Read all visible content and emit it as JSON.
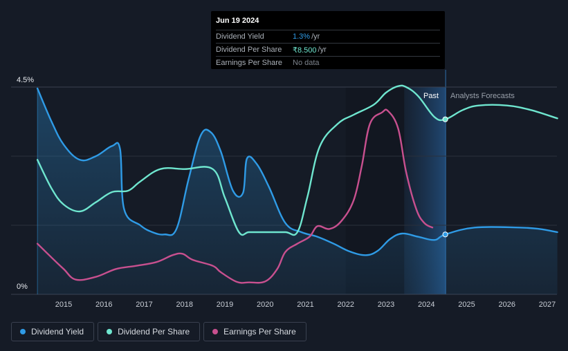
{
  "colors": {
    "background": "#151b26",
    "dividend_yield": "#2f9be6",
    "dividend_per_share": "#6fe6cf",
    "earnings_per_share": "#c8508f",
    "grid": "#2a303c"
  },
  "tooltip": {
    "date": "Jun 19 2024",
    "rows": [
      {
        "label": "Dividend Yield",
        "value": "1.3%",
        "unit": "/yr",
        "color": "#2f9be6"
      },
      {
        "label": "Dividend Per Share",
        "value": "₹8.500",
        "unit": "/yr",
        "color": "#6fe6cf"
      },
      {
        "label": "Earnings Per Share",
        "value": "No data",
        "unit": "",
        "color": "#7d838c"
      }
    ]
  },
  "legend": [
    {
      "label": "Dividend Yield",
      "color": "#2f9be6"
    },
    {
      "label": "Dividend Per Share",
      "color": "#6fe6cf"
    },
    {
      "label": "Earnings Per Share",
      "color": "#c8508f"
    }
  ],
  "chart_data": {
    "type": "line",
    "title": "",
    "xlabel": "",
    "ylabel": "",
    "y_axis_labels": [
      "4.5%",
      "0%"
    ],
    "ylim": [
      0,
      4.5
    ],
    "xlim": [
      2014.0,
      2027.25
    ],
    "x_ticks": [
      2015,
      2016,
      2017,
      2018,
      2019,
      2020,
      2021,
      2022,
      2023,
      2024,
      2025,
      2026,
      2027
    ],
    "past_label": "Past",
    "forecast_label": "Analysts Forecasts",
    "forecast_start": 2024.47,
    "highlight_start": 2023.45,
    "series": [
      {
        "name": "Dividend Yield",
        "unit": "%",
        "x": [
          2014.35,
          2014.7,
          2015.0,
          2015.4,
          2015.8,
          2016.2,
          2016.4,
          2016.5,
          2016.9,
          2017.2,
          2017.5,
          2017.8,
          2018.1,
          2018.4,
          2018.65,
          2018.9,
          2019.2,
          2019.45,
          2019.55,
          2019.8,
          2020.1,
          2020.5,
          2020.9,
          2021.3,
          2021.7,
          2022.1,
          2022.5,
          2022.8,
          2023.1,
          2023.4,
          2023.8,
          2024.2,
          2024.47,
          2025.2,
          2026.3,
          2026.8,
          2027.25
        ],
        "y": [
          4.47,
          3.75,
          3.25,
          2.92,
          3.0,
          3.22,
          3.15,
          1.85,
          1.5,
          1.35,
          1.3,
          1.42,
          2.5,
          3.45,
          3.52,
          3.1,
          2.25,
          2.2,
          2.95,
          2.82,
          2.32,
          1.55,
          1.35,
          1.25,
          1.1,
          0.93,
          0.85,
          0.95,
          1.2,
          1.32,
          1.25,
          1.18,
          1.3,
          1.45,
          1.45,
          1.42,
          1.35
        ]
      },
      {
        "name": "Dividend Per Share",
        "unit": "₹",
        "x": [
          2014.35,
          2014.7,
          2015.0,
          2015.4,
          2015.8,
          2016.2,
          2016.6,
          2016.9,
          2017.4,
          2018.0,
          2018.7,
          2019.0,
          2019.35,
          2019.6,
          2020.0,
          2020.5,
          2020.8,
          2021.05,
          2021.35,
          2021.8,
          2022.2,
          2022.7,
          2023.0,
          2023.3,
          2023.5,
          2023.8,
          2024.2,
          2024.47,
          2024.9,
          2025.3,
          2026.0,
          2026.6,
          2027.25
        ],
        "y": [
          2.92,
          2.3,
          1.95,
          1.8,
          2.0,
          2.22,
          2.25,
          2.45,
          2.72,
          2.72,
          2.72,
          2.1,
          1.35,
          1.35,
          1.35,
          1.35,
          1.35,
          2.12,
          3.2,
          3.7,
          3.9,
          4.12,
          4.38,
          4.52,
          4.5,
          4.3,
          3.85,
          3.8,
          4.0,
          4.1,
          4.1,
          4.0,
          3.82
        ]
      },
      {
        "name": "Earnings Per Share",
        "unit": "₹",
        "x": [
          2014.35,
          2014.7,
          2015.0,
          2015.3,
          2015.8,
          2016.3,
          2016.8,
          2017.3,
          2017.7,
          2017.95,
          2018.2,
          2018.7,
          2018.9,
          2019.3,
          2019.6,
          2020.0,
          2020.3,
          2020.5,
          2020.8,
          2021.1,
          2021.3,
          2021.6,
          2021.9,
          2022.2,
          2022.4,
          2022.6,
          2022.9,
          2023.05,
          2023.3,
          2023.5,
          2023.75,
          2023.95,
          2024.15
        ],
        "y": [
          1.1,
          0.8,
          0.55,
          0.32,
          0.38,
          0.55,
          0.62,
          0.7,
          0.85,
          0.88,
          0.75,
          0.62,
          0.48,
          0.27,
          0.26,
          0.28,
          0.55,
          0.92,
          1.1,
          1.25,
          1.48,
          1.42,
          1.6,
          2.05,
          2.8,
          3.7,
          3.95,
          3.98,
          3.6,
          2.65,
          1.85,
          1.55,
          1.45
        ]
      }
    ],
    "markers": [
      {
        "series": "Dividend Yield",
        "x": 2024.47,
        "y": 1.3
      },
      {
        "series": "Dividend Per Share",
        "x": 2024.47,
        "y": 3.8
      }
    ]
  }
}
